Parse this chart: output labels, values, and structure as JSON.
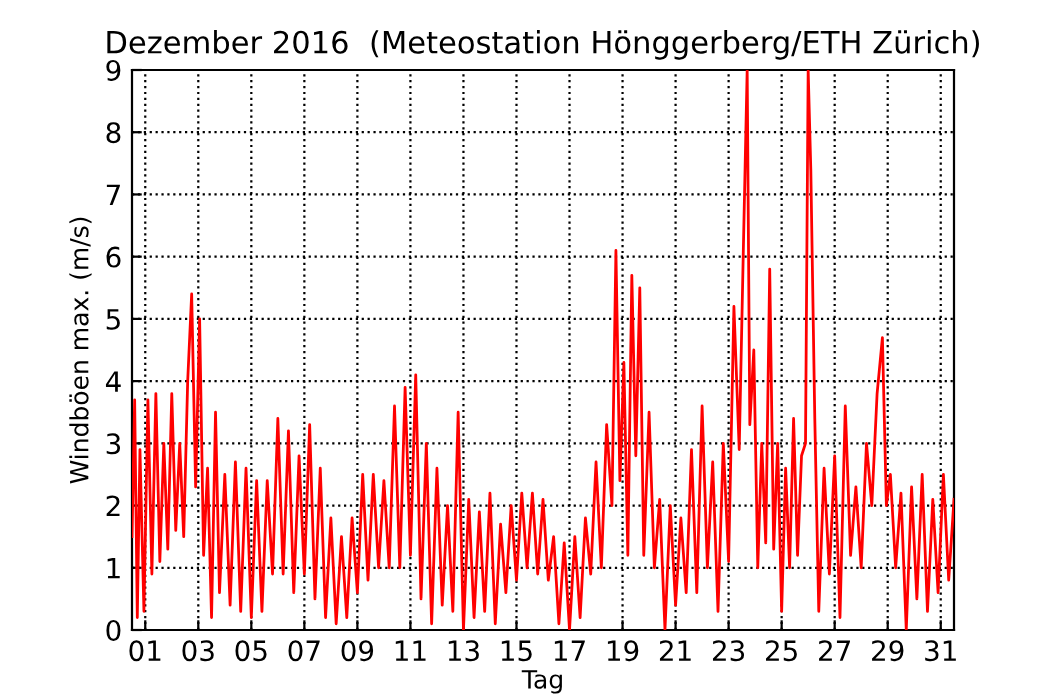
{
  "chart_data": {
    "type": "line",
    "title": "Dezember 2016  (Meteostation Hönggerberg/ETH Zürich)",
    "xlabel": "Tag",
    "ylabel": "Windböen max. (m/s)",
    "xlim": [
      1,
      32
    ],
    "ylim": [
      0,
      9
    ],
    "xticks": [
      {
        "value": 1.5,
        "label": "01"
      },
      {
        "value": 3.5,
        "label": "03"
      },
      {
        "value": 5.5,
        "label": "05"
      },
      {
        "value": 7.5,
        "label": "07"
      },
      {
        "value": 9.5,
        "label": "09"
      },
      {
        "value": 11.5,
        "label": "11"
      },
      {
        "value": 13.5,
        "label": "13"
      },
      {
        "value": 15.5,
        "label": "15"
      },
      {
        "value": 17.5,
        "label": "17"
      },
      {
        "value": 19.5,
        "label": "19"
      },
      {
        "value": 21.5,
        "label": "21"
      },
      {
        "value": 23.5,
        "label": "23"
      },
      {
        "value": 25.5,
        "label": "25"
      },
      {
        "value": 27.5,
        "label": "27"
      },
      {
        "value": 29.5,
        "label": "29"
      },
      {
        "value": 31.5,
        "label": "31"
      }
    ],
    "yticks": [
      0,
      1,
      2,
      3,
      4,
      5,
      6,
      7,
      8,
      9
    ],
    "grid": true,
    "line_style": "solid",
    "marker": "none",
    "series": [
      {
        "color": "#ff0000",
        "x": [
          1.0,
          1.1,
          1.2,
          1.3,
          1.45,
          1.6,
          1.75,
          1.9,
          2.05,
          2.2,
          2.35,
          2.5,
          2.65,
          2.8,
          2.95,
          3.1,
          3.25,
          3.4,
          3.55,
          3.7,
          3.85,
          4.0,
          4.15,
          4.3,
          4.5,
          4.7,
          4.9,
          5.1,
          5.3,
          5.5,
          5.7,
          5.9,
          6.1,
          6.3,
          6.5,
          6.7,
          6.9,
          7.1,
          7.3,
          7.5,
          7.7,
          7.9,
          8.1,
          8.3,
          8.5,
          8.7,
          8.9,
          9.1,
          9.3,
          9.5,
          9.7,
          9.9,
          10.1,
          10.3,
          10.5,
          10.7,
          10.9,
          11.1,
          11.3,
          11.5,
          11.7,
          11.9,
          12.1,
          12.3,
          12.5,
          12.7,
          12.9,
          13.1,
          13.3,
          13.5,
          13.7,
          13.9,
          14.1,
          14.3,
          14.5,
          14.7,
          14.9,
          15.1,
          15.3,
          15.5,
          15.7,
          15.9,
          16.1,
          16.3,
          16.5,
          16.7,
          16.9,
          17.1,
          17.3,
          17.5,
          17.7,
          17.9,
          18.1,
          18.3,
          18.5,
          18.7,
          18.9,
          19.1,
          19.25,
          19.4,
          19.55,
          19.7,
          19.85,
          20.0,
          20.15,
          20.3,
          20.5,
          20.7,
          20.9,
          21.1,
          21.3,
          21.5,
          21.7,
          21.9,
          22.1,
          22.3,
          22.5,
          22.7,
          22.9,
          23.1,
          23.3,
          23.5,
          23.7,
          23.9,
          24.05,
          24.2,
          24.3,
          24.45,
          24.6,
          24.75,
          24.9,
          25.05,
          25.2,
          25.35,
          25.5,
          25.65,
          25.8,
          25.95,
          26.1,
          26.25,
          26.4,
          26.5,
          26.6,
          26.75,
          26.9,
          27.1,
          27.3,
          27.5,
          27.7,
          27.9,
          28.1,
          28.3,
          28.5,
          28.7,
          28.9,
          29.1,
          29.3,
          29.45,
          29.6,
          29.8,
          30.0,
          30.2,
          30.4,
          30.6,
          30.8,
          31.0,
          31.2,
          31.4,
          31.6,
          31.8,
          32.0
        ],
        "values": [
          1.5,
          3.7,
          0.2,
          2.9,
          0.3,
          3.7,
          0.9,
          3.8,
          1.1,
          3.0,
          1.3,
          3.8,
          1.6,
          3.0,
          1.5,
          4.0,
          5.4,
          2.3,
          5.0,
          1.2,
          2.6,
          0.2,
          3.5,
          0.6,
          2.5,
          0.4,
          2.7,
          0.3,
          2.6,
          0.2,
          2.4,
          0.3,
          2.4,
          0.9,
          3.4,
          0.9,
          3.2,
          0.6,
          2.8,
          0.9,
          3.3,
          0.5,
          2.6,
          0.2,
          1.8,
          0.1,
          1.5,
          0.2,
          1.8,
          0.6,
          2.5,
          0.8,
          2.5,
          1.0,
          2.4,
          1.0,
          3.6,
          1.0,
          3.9,
          1.2,
          4.1,
          0.5,
          3.0,
          0.1,
          2.6,
          0.4,
          2.0,
          0.3,
          3.5,
          0.0,
          2.1,
          0.2,
          1.9,
          0.3,
          2.2,
          0.1,
          1.7,
          0.6,
          2.0,
          0.8,
          2.2,
          1.0,
          2.2,
          0.9,
          2.1,
          0.8,
          1.5,
          0.1,
          1.4,
          0.0,
          1.5,
          0.2,
          1.8,
          0.9,
          2.7,
          1.0,
          3.3,
          2.0,
          6.1,
          2.4,
          4.3,
          1.2,
          5.7,
          2.8,
          5.5,
          1.2,
          3.5,
          1.0,
          2.1,
          0.0,
          2.0,
          0.4,
          1.8,
          0.6,
          2.9,
          0.6,
          3.6,
          1.0,
          2.7,
          0.3,
          3.0,
          1.1,
          5.2,
          2.9,
          6.0,
          9.0,
          3.3,
          4.5,
          1.0,
          3.0,
          1.4,
          5.8,
          1.3,
          3.0,
          0.3,
          2.6,
          1.0,
          3.4,
          1.2,
          2.8,
          3.0,
          9.0,
          7.4,
          3.4,
          0.3,
          2.6,
          0.9,
          2.8,
          0.2,
          3.6,
          1.2,
          2.3,
          1.0,
          3.0,
          2.0,
          3.8,
          4.7,
          2.0,
          2.5,
          1.0,
          2.2,
          0.0,
          2.3,
          0.5,
          2.5,
          0.3,
          2.1,
          0.6,
          2.5,
          0.8,
          2.1
        ]
      }
    ]
  }
}
